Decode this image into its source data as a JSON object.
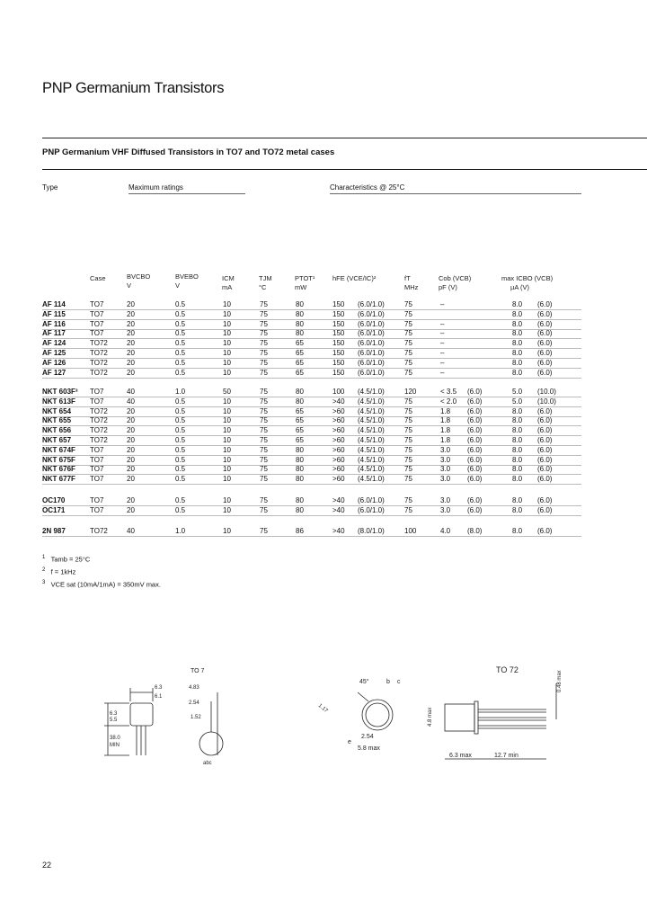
{
  "title": "PNP Germanium Transistors",
  "subtitle": "PNP Germanium VHF Diffused Transistors in TO7 and TO72 metal cases",
  "sections": {
    "type": "Type",
    "max": "Maximum ratings",
    "char": "Characteristics @ 25°C"
  },
  "headers": {
    "case": "Case",
    "bvcbo": "BVCBO",
    "bvcbo_u": "V",
    "bvebo": "BVEBO",
    "bvebo_u": "V",
    "icm": "ICM",
    "icm_u": "mA",
    "tjm": "TJM",
    "tjm_u": "°C",
    "ptot": "PTOT¹",
    "ptot_u": "mW",
    "hfe": "hFE (VCE/IC)²",
    "ft": "fT",
    "ft_u": "MHz",
    "cob": "Cob (VCB)",
    "cob_u": "pF   (V)",
    "icbo": "max ICBO (VCB)",
    "icbo_u": "µA       (V)"
  },
  "groups": [
    {
      "rows": [
        [
          "AF 114",
          "TO7",
          "20",
          "0.5",
          "10",
          "75",
          "80",
          "150",
          "(6.0/1.0)",
          "75",
          "–",
          "",
          "8.0",
          "(6.0)"
        ],
        [
          "AF 115",
          "TO7",
          "20",
          "0.5",
          "10",
          "75",
          "80",
          "150",
          "(6.0/1.0)",
          "75",
          "",
          "",
          "8.0",
          "(6.0)"
        ],
        [
          "AF 116",
          "TO7",
          "20",
          "0.5",
          "10",
          "75",
          "80",
          "150",
          "(6.0/1.0)",
          "75",
          "–",
          "",
          "8.0",
          "(6.0)"
        ],
        [
          "AF 117",
          "TO7",
          "20",
          "0.5",
          "10",
          "75",
          "80",
          "150",
          "(6.0/1.0)",
          "75",
          "–",
          "",
          "8.0",
          "(6.0)"
        ],
        [
          "AF 124",
          "TO72",
          "20",
          "0.5",
          "10",
          "75",
          "65",
          "150",
          "(6.0/1.0)",
          "75",
          "–",
          "",
          "8.0",
          "(6.0)"
        ],
        [
          "AF 125",
          "TO72",
          "20",
          "0.5",
          "10",
          "75",
          "65",
          "150",
          "(6.0/1.0)",
          "75",
          "–",
          "",
          "8.0",
          "(6.0)"
        ],
        [
          "AF 126",
          "TO72",
          "20",
          "0.5",
          "10",
          "75",
          "65",
          "150",
          "(6.0/1.0)",
          "75",
          "–",
          "",
          "8.0",
          "(6.0)"
        ],
        [
          "AF 127",
          "TO72",
          "20",
          "0.5",
          "10",
          "75",
          "65",
          "150",
          "(6.0/1.0)",
          "75",
          "–",
          "",
          "8.0",
          "(6.0)"
        ]
      ]
    },
    {
      "rows": [
        [
          "NKT 603F³",
          "TO7",
          "40",
          "1.0",
          "50",
          "75",
          "80",
          "100",
          "(4.5/1.0)",
          "120",
          "< 3.5",
          "(6.0)",
          "5.0",
          "(10.0)"
        ],
        [
          "NKT 613F",
          "TO7",
          "40",
          "0.5",
          "10",
          "75",
          "80",
          ">40",
          "(4.5/1.0)",
          "75",
          "< 2.0",
          "(6.0)",
          "5.0",
          "(10.0)"
        ],
        [
          "NKT 654",
          "TO72",
          "20",
          "0.5",
          "10",
          "75",
          "65",
          ">60",
          "(4.5/1.0)",
          "75",
          "1.8",
          "(6.0)",
          "8.0",
          "(6.0)"
        ],
        [
          "NKT 655",
          "TO72",
          "20",
          "0.5",
          "10",
          "75",
          "65",
          ">60",
          "(4.5/1.0)",
          "75",
          "1.8",
          "(6.0)",
          "8.0",
          "(6.0)"
        ],
        [
          "NKT 656",
          "TO72",
          "20",
          "0.5",
          "10",
          "75",
          "65",
          ">60",
          "(4.5/1.0)",
          "75",
          "1.8",
          "(6.0)",
          "8.0",
          "(6.0)"
        ],
        [
          "NKT 657",
          "TO72",
          "20",
          "0.5",
          "10",
          "75",
          "65",
          ">60",
          "(4.5/1.0)",
          "75",
          "1.8",
          "(6.0)",
          "8.0",
          "(6.0)"
        ],
        [
          "NKT 674F",
          "TO7",
          "20",
          "0.5",
          "10",
          "75",
          "80",
          ">60",
          "(4.5/1.0)",
          "75",
          "3.0",
          "(6.0)",
          "8.0",
          "(6.0)"
        ],
        [
          "NKT 675F",
          "TO7",
          "20",
          "0.5",
          "10",
          "75",
          "80",
          ">60",
          "(4.5/1.0)",
          "75",
          "3.0",
          "(6.0)",
          "8.0",
          "(6.0)"
        ],
        [
          "NKT 676F",
          "TO7",
          "20",
          "0.5",
          "10",
          "75",
          "80",
          ">60",
          "(4.5/1.0)",
          "75",
          "3.0",
          "(6.0)",
          "8.0",
          "(6.0)"
        ],
        [
          "NKT 677F",
          "TO7",
          "20",
          "0.5",
          "10",
          "75",
          "80",
          ">60",
          "(4.5/1.0)",
          "75",
          "3.0",
          "(6.0)",
          "8.0",
          "(6.0)"
        ]
      ]
    },
    {
      "rows": [
        [
          "OC170",
          "TO7",
          "20",
          "0.5",
          "10",
          "75",
          "80",
          ">40",
          "(6.0/1.0)",
          "75",
          "3.0",
          "(6.0)",
          "8.0",
          "(6.0)"
        ],
        [
          "OC171",
          "TO7",
          "20",
          "0.5",
          "10",
          "75",
          "80",
          ">40",
          "(6.0/1.0)",
          "75",
          "3.0",
          "(6.0)",
          "8.0",
          "(6.0)"
        ]
      ]
    },
    {
      "rows": [
        [
          "2N 987",
          "TO72",
          "40",
          "1.0",
          "10",
          "75",
          "86",
          ">40",
          "(8.0/1.0)",
          "100",
          "4.0",
          "(8.0)",
          "8.0",
          "(6.0)"
        ]
      ]
    }
  ],
  "footnotes": [
    {
      "num": "1",
      "text": "Tamb = 25°C"
    },
    {
      "num": "2",
      "text": "f = 1kHz"
    },
    {
      "num": "3",
      "text": "VCE sat (10mA/1mA) = 350mV max."
    }
  ],
  "drawings": {
    "to7": {
      "title": "TO 7",
      "dims": [
        "6.3",
        "6.1",
        "4.83",
        "2.54",
        "1.52",
        "6.3",
        "5.5",
        "38.0",
        "MIN",
        "abc"
      ]
    },
    "to72": {
      "title": "TO 72",
      "dims": [
        "45°",
        "b",
        "c",
        "e",
        "1.17",
        "2.54",
        "5.8 max",
        "0.48 max",
        "4.8 max",
        "6.3 max",
        "12.7 min"
      ]
    }
  },
  "page_number": "22"
}
